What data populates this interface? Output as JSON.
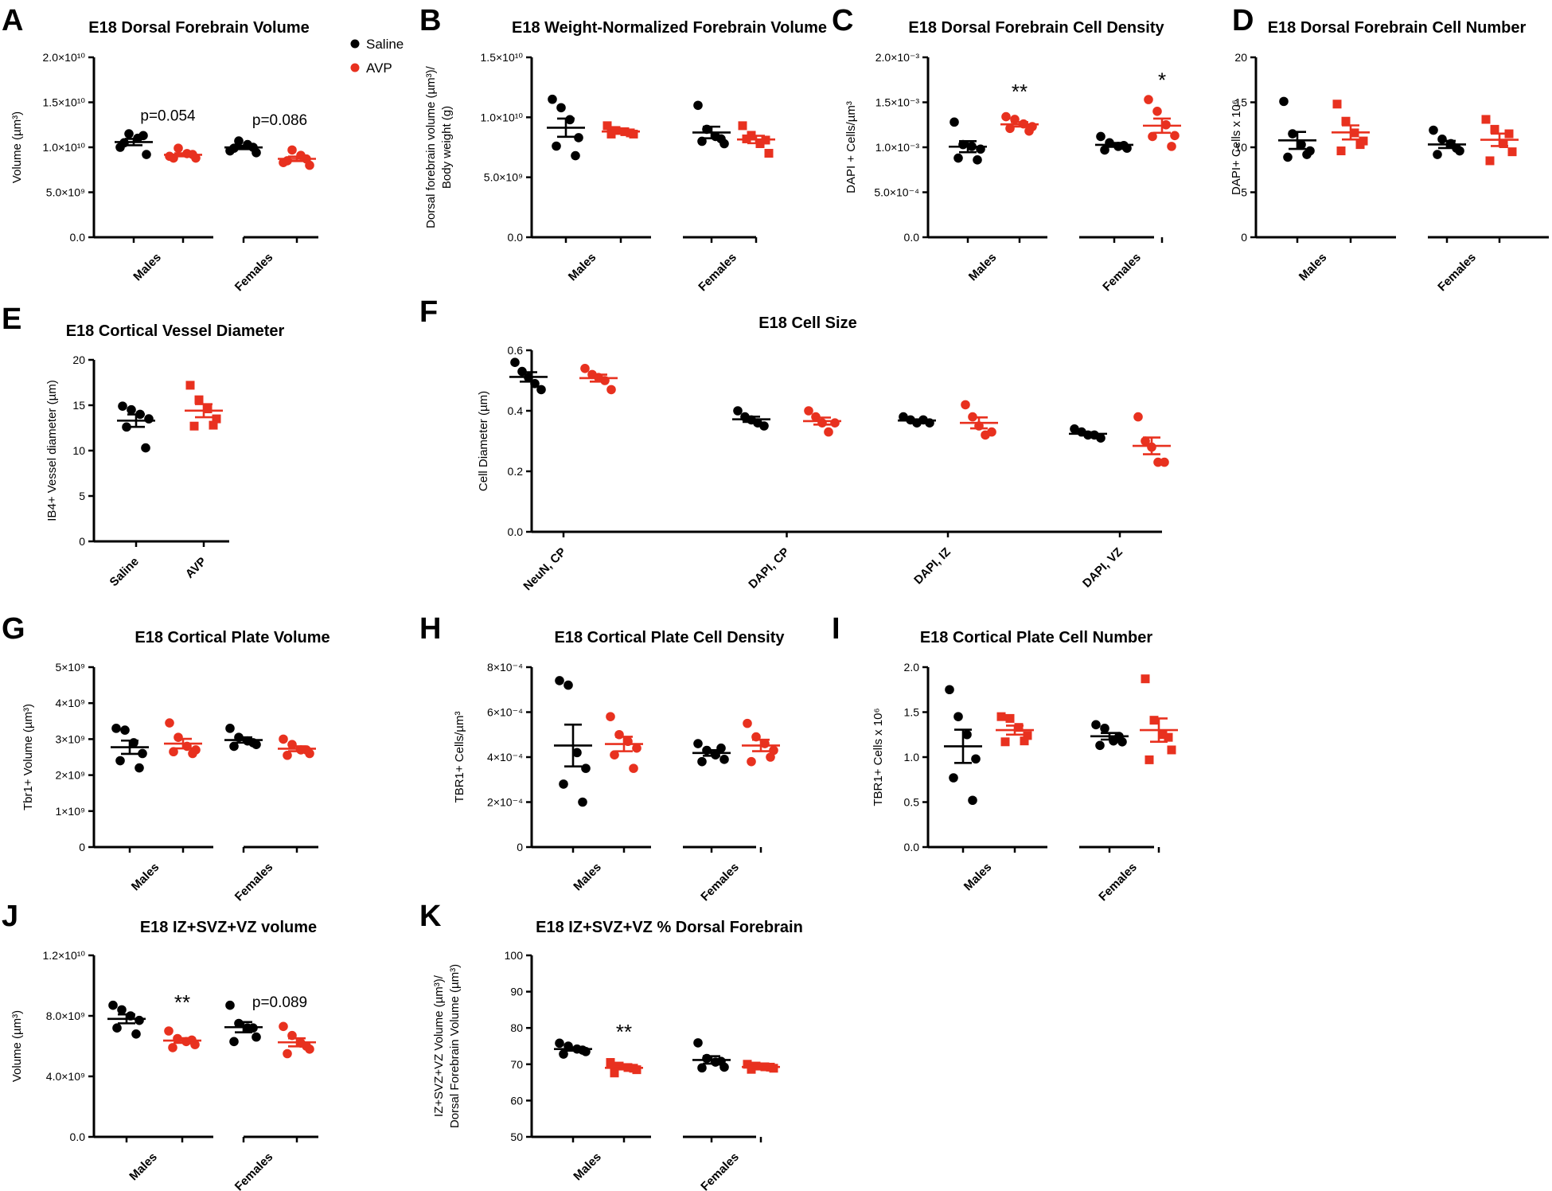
{
  "legend": {
    "items": [
      {
        "label": "Saline",
        "color": "#000000"
      },
      {
        "label": "AVP",
        "color": "#e8311f"
      }
    ]
  },
  "colors": {
    "saline": "#000000",
    "avp": "#e8311f"
  },
  "chart_data": [
    {
      "id": "A",
      "letter": "A",
      "type": "scatter",
      "title": "E18 Dorsal Forebrain Volume",
      "ylabel": "Volume (µm³)",
      "ylim": [
        0,
        20000000000
      ],
      "yticks": [
        {
          "v": 0,
          "label": "0.0"
        },
        {
          "v": 5000000000,
          "label": "5.0×10⁹"
        },
        {
          "v": 10000000000,
          "label": "1.0×10¹⁰"
        },
        {
          "v": 15000000000,
          "label": "1.5×10¹⁰"
        },
        {
          "v": 20000000000,
          "label": "2.0×10¹⁰"
        }
      ],
      "categories": [
        "Males",
        "Females"
      ],
      "series": [
        {
          "name": "Saline",
          "marker": "circle",
          "values": [
            [
              10000000000,
              11500000000,
              11000000000,
              9200000000,
              10500000000,
              11300000000
            ],
            [
              9600000000,
              10700000000,
              10300000000,
              9400000000,
              9900000000,
              10000000000
            ]
          ]
        },
        {
          "name": "AVP",
          "marker": "circle",
          "values": [
            [
              9000000000,
              9900000000,
              9300000000,
              8800000000,
              8800000000,
              9200000000
            ],
            [
              8300000000,
              9700000000,
              9100000000,
              8000000000,
              8500000000,
              8700000000
            ]
          ]
        }
      ],
      "annotations": [
        {
          "text": "p=0.054",
          "cat": 0,
          "y": 13500000000
        },
        {
          "text": "p=0.086",
          "cat": 1,
          "y": 13000000000
        }
      ]
    },
    {
      "id": "B",
      "letter": "B",
      "type": "scatter",
      "title": "E18 Weight-Normalized Forebrain Volume",
      "ylabel": "Dorsal forebrain volume (µm³)/ Body weight (g)",
      "ylim": [
        0,
        15000000000
      ],
      "yticks": [
        {
          "v": 0,
          "label": "0.0"
        },
        {
          "v": 5000000000,
          "label": "5.0×10⁹"
        },
        {
          "v": 10000000000,
          "label": "1.0×10¹⁰"
        },
        {
          "v": 15000000000,
          "label": "1.5×10¹⁰"
        }
      ],
      "categories": [
        "Males",
        "Females"
      ],
      "series": [
        {
          "name": "Saline",
          "marker": "circle",
          "values": [
            [
              11500000000,
              10800000000,
              9800000000,
              8300000000,
              7600000000,
              6800000000
            ],
            [
              11000000000,
              9000000000,
              8400000000,
              7800000000,
              8000000000,
              8200000000
            ]
          ]
        },
        {
          "name": "AVP",
          "marker": "square",
          "values": [
            [
              9300000000,
              8900000000,
              8800000000,
              8600000000,
              8600000000,
              8700000000
            ],
            [
              9300000000,
              8500000000,
              7800000000,
              7000000000,
              8200000000,
              8100000000
            ]
          ]
        }
      ],
      "annotations": []
    },
    {
      "id": "C",
      "letter": "C",
      "type": "scatter",
      "title": "E18 Dorsal Forebrain Cell Density",
      "ylabel": "DAPI + Cells/µm³",
      "ylim": [
        0,
        0.002
      ],
      "yticks": [
        {
          "v": 0,
          "label": "0.0"
        },
        {
          "v": 0.0005,
          "label": "5.0×10⁻⁴"
        },
        {
          "v": 0.001,
          "label": "1.0×10⁻³"
        },
        {
          "v": 0.0015,
          "label": "1.5×10⁻³"
        },
        {
          "v": 0.002,
          "label": "2.0×10⁻³"
        }
      ],
      "categories": [
        "Males",
        "Females"
      ],
      "series": [
        {
          "name": "Saline",
          "marker": "circle",
          "values": [
            [
              0.00128,
              0.00103,
              0.00101,
              0.00098,
              0.00088,
              0.00086
            ],
            [
              0.00112,
              0.00105,
              0.00101,
              0.00099,
              0.00097,
              0.00102
            ]
          ]
        },
        {
          "name": "AVP",
          "marker": "circle",
          "values": [
            [
              0.00134,
              0.00131,
              0.00126,
              0.00123,
              0.00121,
              0.00118
            ],
            [
              0.00153,
              0.0014,
              0.00125,
              0.00113,
              0.00112,
              0.00101
            ]
          ]
        }
      ],
      "annotations": [
        {
          "text": "**",
          "cat": 0,
          "y": 0.00162
        },
        {
          "text": "*",
          "cat": 1,
          "y": 0.00175
        }
      ]
    },
    {
      "id": "D",
      "letter": "D",
      "type": "scatter",
      "title": "E18 Dorsal Forebrain Cell Number",
      "ylabel": "DAPI+ Cells x 10⁶",
      "ylim": [
        0,
        20
      ],
      "yticks": [
        {
          "v": 0,
          "label": "0"
        },
        {
          "v": 5,
          "label": "5"
        },
        {
          "v": 10,
          "label": "10"
        },
        {
          "v": 15,
          "label": "15"
        },
        {
          "v": 20,
          "label": "20"
        }
      ],
      "categories": [
        "Males",
        "Females"
      ],
      "series": [
        {
          "name": "Saline",
          "marker": "circle",
          "values": [
            [
              15.1,
              11.5,
              10.3,
              9.6,
              8.9,
              9.2
            ],
            [
              11.9,
              10.9,
              10.4,
              9.6,
              9.2,
              9.9
            ]
          ]
        },
        {
          "name": "AVP",
          "marker": "square",
          "values": [
            [
              14.8,
              12.9,
              11.6,
              10.7,
              9.6,
              10.3
            ],
            [
              13.1,
              12.0,
              10.4,
              9.5,
              8.5,
              11.5
            ]
          ]
        }
      ],
      "annotations": []
    },
    {
      "id": "E",
      "letter": "E",
      "type": "scatter",
      "title": "E18 Cortical Vessel Diameter",
      "ylabel": "IB4+ Vessel diameter (µm)",
      "ylim": [
        0,
        20
      ],
      "yticks": [
        {
          "v": 0,
          "label": "0"
        },
        {
          "v": 5,
          "label": "5"
        },
        {
          "v": 10,
          "label": "10"
        },
        {
          "v": 15,
          "label": "15"
        },
        {
          "v": 20,
          "label": "20"
        }
      ],
      "categories": [
        "Saline",
        "AVP"
      ],
      "series": [
        {
          "name": "Saline",
          "marker": "circle",
          "values": [
            [
              14.9,
              14.5,
              14.0,
              13.5,
              12.6,
              10.3
            ],
            []
          ]
        },
        {
          "name": "AVP",
          "marker": "square",
          "values": [
            [],
            [
              17.2,
              15.6,
              14.6,
              13.5,
              12.7,
              12.8
            ]
          ]
        }
      ],
      "annotations": []
    },
    {
      "id": "F",
      "letter": "F",
      "type": "scatter",
      "title": "E18 Cell Size",
      "ylabel": "Cell Diameter (µm)",
      "ylim": [
        0,
        0.6
      ],
      "yticks": [
        {
          "v": 0,
          "label": "0.0"
        },
        {
          "v": 0.2,
          "label": "0.2"
        },
        {
          "v": 0.4,
          "label": "0.4"
        },
        {
          "v": 0.6,
          "label": "0.6"
        }
      ],
      "categories": [
        "NeuN, CP",
        "DAPI, CP",
        "DAPI, IZ",
        "DAPI, VZ"
      ],
      "series": [
        {
          "name": "Saline",
          "marker": "circle",
          "values": [
            [
              0.56,
              0.53,
              0.51,
              0.49,
              0.47
            ],
            [
              0.4,
              0.38,
              0.37,
              0.36,
              0.35
            ],
            [
              0.38,
              0.37,
              0.36,
              0.37,
              0.36
            ],
            [
              0.34,
              0.33,
              0.32,
              0.32,
              0.31
            ]
          ]
        },
        {
          "name": "AVP",
          "marker": "circle",
          "values": [
            [
              0.54,
              0.52,
              0.51,
              0.5,
              0.47
            ],
            [
              0.4,
              0.38,
              0.36,
              0.33,
              0.36
            ],
            [
              0.42,
              0.38,
              0.35,
              0.32,
              0.33
            ],
            [
              0.38,
              0.3,
              0.28,
              0.23,
              0.23
            ]
          ]
        }
      ],
      "annotations": []
    },
    {
      "id": "G",
      "letter": "G",
      "type": "scatter",
      "title": "E18 Cortical Plate Volume",
      "ylabel": "Tbr1+ Volume (µm³)",
      "ylim": [
        0,
        5000000000
      ],
      "yticks": [
        {
          "v": 0,
          "label": "0"
        },
        {
          "v": 1000000000,
          "label": "1×10⁹"
        },
        {
          "v": 2000000000,
          "label": "2×10⁹"
        },
        {
          "v": 3000000000,
          "label": "3×10⁹"
        },
        {
          "v": 4000000000,
          "label": "4×10⁹"
        },
        {
          "v": 5000000000,
          "label": "5×10⁹"
        }
      ],
      "categories": [
        "Males",
        "Females"
      ],
      "series": [
        {
          "name": "Saline",
          "marker": "circle",
          "values": [
            [
              3300000000,
              3250000000,
              2900000000,
              2600000000,
              2400000000,
              2200000000
            ],
            [
              3300000000,
              3050000000,
              2950000000,
              2850000000,
              2800000000,
              2900000000
            ]
          ]
        },
        {
          "name": "AVP",
          "marker": "circle",
          "values": [
            [
              3450000000,
              3050000000,
              2800000000,
              2700000000,
              2650000000,
              2600000000
            ],
            [
              3000000000,
              2850000000,
              2700000000,
              2600000000,
              2550000000,
              2700000000
            ]
          ]
        }
      ],
      "annotations": []
    },
    {
      "id": "H",
      "letter": "H",
      "type": "scatter",
      "title": "E18 Cortical Plate Cell Density",
      "ylabel": "TBR1+ Cells/µm³",
      "ylim": [
        0,
        0.0008
      ],
      "yticks": [
        {
          "v": 0,
          "label": "0"
        },
        {
          "v": 0.0002,
          "label": "2×10⁻⁴"
        },
        {
          "v": 0.0004,
          "label": "4×10⁻⁴"
        },
        {
          "v": 0.0006,
          "label": "6×10⁻⁴"
        },
        {
          "v": 0.0008,
          "label": "8×10⁻⁴"
        }
      ],
      "categories": [
        "Males",
        "Females"
      ],
      "series": [
        {
          "name": "Saline",
          "marker": "circle",
          "values": [
            [
              0.00074,
              0.00072,
              0.00042,
              0.00035,
              0.00028,
              0.0002
            ],
            [
              0.00046,
              0.00043,
              0.00041,
              0.00039,
              0.00038,
              0.00044
            ]
          ]
        },
        {
          "name": "AVP",
          "marker": "circle",
          "values": [
            [
              0.00058,
              0.0005,
              0.00047,
              0.00044,
              0.00041,
              0.00035
            ],
            [
              0.00055,
              0.00049,
              0.00046,
              0.00043,
              0.00038,
              0.0004
            ]
          ]
        }
      ],
      "annotations": []
    },
    {
      "id": "I",
      "letter": "I",
      "type": "scatter",
      "title": "E18 Cortical Plate Cell Number",
      "ylabel": "TBR1+ Cells x 10⁶",
      "ylim": [
        0,
        2.0
      ],
      "yticks": [
        {
          "v": 0,
          "label": "0.0"
        },
        {
          "v": 0.5,
          "label": "0.5"
        },
        {
          "v": 1.0,
          "label": "1.0"
        },
        {
          "v": 1.5,
          "label": "1.5"
        },
        {
          "v": 2.0,
          "label": "2.0"
        }
      ],
      "categories": [
        "Males",
        "Females"
      ],
      "series": [
        {
          "name": "Saline",
          "marker": "circle",
          "values": [
            [
              1.75,
              1.45,
              1.25,
              0.98,
              0.77,
              0.52
            ],
            [
              1.36,
              1.32,
              1.18,
              1.17,
              1.13,
              1.23
            ]
          ]
        },
        {
          "name": "AVP",
          "marker": "square",
          "values": [
            [
              1.45,
              1.43,
              1.33,
              1.24,
              1.17,
              1.18
            ],
            [
              1.87,
              1.41,
              1.25,
              1.08,
              0.97,
              1.22
            ]
          ]
        }
      ],
      "annotations": []
    },
    {
      "id": "J",
      "letter": "J",
      "type": "scatter",
      "title": "E18 IZ+SVZ+VZ volume",
      "ylabel": "Volume (µm³)",
      "ylim": [
        0,
        12000000000
      ],
      "yticks": [
        {
          "v": 0,
          "label": "0.0"
        },
        {
          "v": 4000000000,
          "label": "4.0×10⁹"
        },
        {
          "v": 8000000000,
          "label": "8.0×10⁹"
        },
        {
          "v": 12000000000,
          "label": "1.2×10¹⁰"
        }
      ],
      "categories": [
        "Males",
        "Females"
      ],
      "series": [
        {
          "name": "Saline",
          "marker": "circle",
          "values": [
            [
              8700000000,
              8400000000,
              8000000000,
              7700000000,
              7200000000,
              6800000000
            ],
            [
              8700000000,
              7500000000,
              7200000000,
              6600000000,
              6300000000,
              7200000000
            ]
          ]
        },
        {
          "name": "AVP",
          "marker": "circle",
          "values": [
            [
              7000000000,
              6500000000,
              6300000000,
              6100000000,
              5900000000,
              6400000000
            ],
            [
              7300000000,
              6700000000,
              6200000000,
              5800000000,
              5500000000,
              6000000000
            ]
          ]
        }
      ],
      "annotations": [
        {
          "text": "**",
          "cat": 0,
          "y": 8900000000
        },
        {
          "text": "p=0.089",
          "cat": 1,
          "y": 8900000000
        }
      ]
    },
    {
      "id": "K",
      "letter": "K",
      "type": "scatter",
      "title": "E18 IZ+SVZ+VZ % Dorsal Forebrain",
      "ylabel": "IZ+SVZ+VZ Volume (µm³)/ Dorsal Forebrain Volume (µm³)",
      "ylim": [
        50,
        100
      ],
      "yticks": [
        {
          "v": 50,
          "label": "50"
        },
        {
          "v": 60,
          "label": "60"
        },
        {
          "v": 70,
          "label": "70"
        },
        {
          "v": 80,
          "label": "80"
        },
        {
          "v": 90,
          "label": "90"
        },
        {
          "v": 100,
          "label": "100"
        }
      ],
      "categories": [
        "Males",
        "Females"
      ],
      "series": [
        {
          "name": "Saline",
          "marker": "circle",
          "values": [
            [
              75.8,
              75.0,
              74.2,
              73.5,
              72.8,
              73.9
            ],
            [
              75.9,
              71.6,
              70.6,
              69.2,
              69.0,
              70.8
            ]
          ]
        },
        {
          "name": "AVP",
          "marker": "square",
          "values": [
            [
              70.5,
              69.5,
              69.1,
              68.5,
              67.6,
              68.9
            ],
            [
              70.0,
              69.5,
              69.3,
              68.9,
              68.6,
              69.2
            ]
          ]
        }
      ],
      "annotations": [
        {
          "text": "**",
          "cat": 0,
          "y": 79
        }
      ]
    }
  ]
}
